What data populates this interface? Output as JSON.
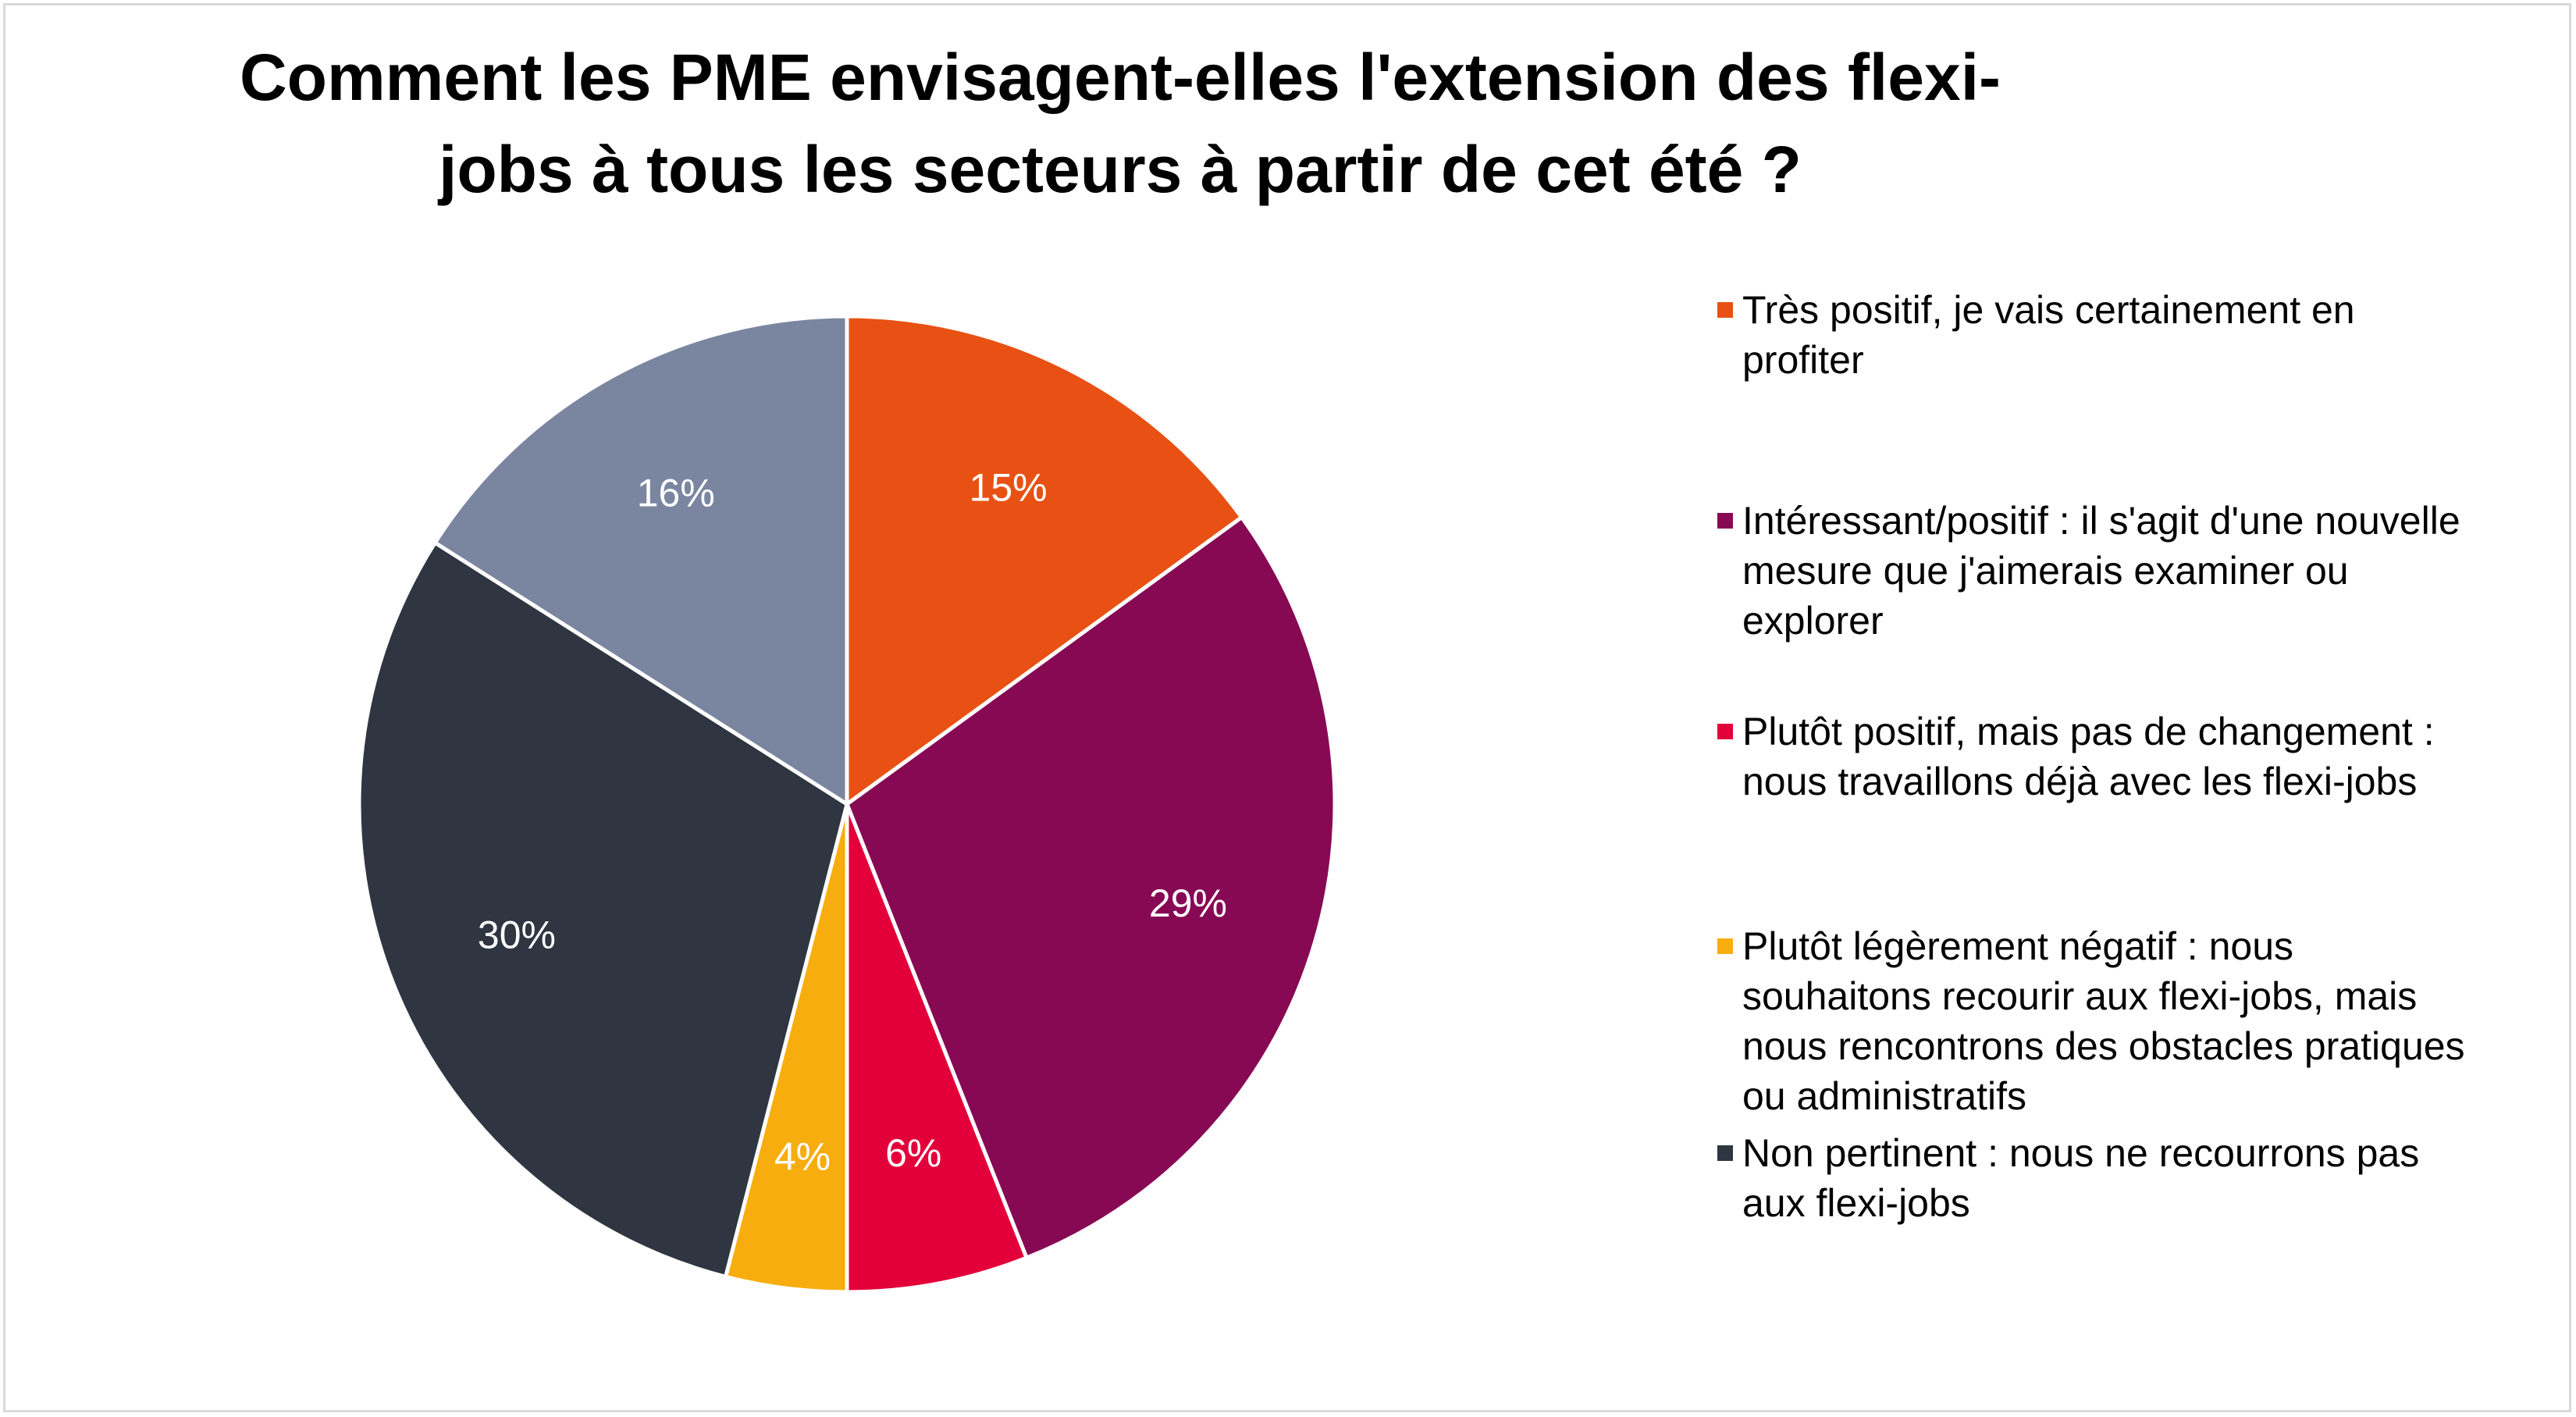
{
  "chart_data": {
    "type": "pie",
    "title": "Comment les PME envisagent-elles l'extension des flexi-jobs à tous les secteurs à partir de cet été ?",
    "slices": [
      {
        "name": "Très positif, je vais certainement en profiter",
        "value": 15,
        "label": "15%",
        "color": "#E85113"
      },
      {
        "name": "Intéressant/positif : il s'agit d'une nouvelle mesure que j'aimerais examiner ou explorer",
        "value": 29,
        "label": "29%",
        "color": "#870954"
      },
      {
        "name": "Plutôt positif, mais pas de changement : nous travaillons déjà avec les flexi-jobs",
        "value": 6,
        "label": "6%",
        "color": "#E3003A"
      },
      {
        "name": "Plutôt légèrement négatif : nous souhaitons recourir aux flexi-jobs, mais nous rencontrons des obstacles pratiques ou administratifs",
        "value": 4,
        "label": "4%",
        "color": "#F7AD0D"
      },
      {
        "name": "Non pertinent : nous ne recourrons pas aux flexi-jobs",
        "value": 30,
        "label": "30%",
        "color": "#2F3541"
      },
      {
        "name": "",
        "value": 16,
        "label": "16%",
        "color": "#7A86A0"
      }
    ],
    "legend_position": "right"
  },
  "title_lines": [
    "Comment les PME envisagent-elles l'extension des flexi-",
    "jobs à tous les secteurs à partir de cet été ?"
  ],
  "legend": [
    {
      "text": "Très positif, je vais certainement en profiter",
      "lines": [
        "Très positif, je vais certainement en",
        "profiter"
      ],
      "color": "#E85113"
    },
    {
      "text": "Intéressant/positif : il s'agit d'une nouvelle mesure que j'aimerais examiner ou explorer",
      "lines": [
        "Intéressant/positif : il s'agit d'une nouvelle",
        "mesure que j'aimerais examiner ou",
        "explorer"
      ],
      "color": "#870954"
    },
    {
      "text": "Plutôt positif, mais pas de changement : nous travaillons déjà avec les flexi-jobs",
      "lines": [
        "Plutôt positif, mais pas de changement :",
        "nous travaillons déjà avec les flexi-jobs"
      ],
      "color": "#E3003A"
    },
    {
      "text": "Plutôt légèrement négatif : nous souhaitons recourir aux flexi-jobs, mais nous rencontrons des obstacles pratiques ou administratifs",
      "lines": [
        "Plutôt légèrement négatif : nous",
        "souhaitons recourir aux flexi-jobs, mais",
        "nous rencontrons des obstacles pratiques",
        "ou administratifs"
      ],
      "color": "#F7AD0D"
    },
    {
      "text": "Non pertinent : nous ne recourrons pas aux flexi-jobs",
      "lines": [
        "Non pertinent : nous ne recourrons pas",
        "aux flexi-jobs"
      ],
      "color": "#2F3541"
    }
  ]
}
